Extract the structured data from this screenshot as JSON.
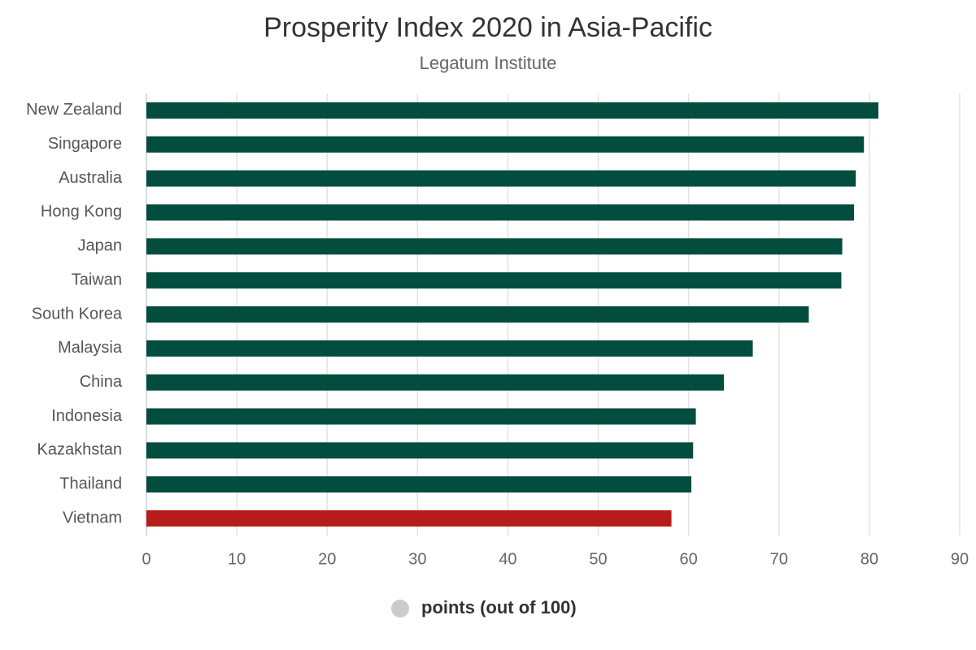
{
  "chart_data": {
    "type": "bar",
    "orientation": "horizontal",
    "title": "Prosperity Index 2020 in Asia-Pacific",
    "subtitle": "Legatum Institute",
    "categories": [
      "New Zealand",
      "Singapore",
      "Australia",
      "Hong Kong",
      "Japan",
      "Taiwan",
      "South Korea",
      "Malaysia",
      "China",
      "Indonesia",
      "Kazakhstan",
      "Thailand",
      "Vietnam"
    ],
    "series": [
      {
        "name": "points (out of 100)",
        "values": [
          81.0,
          79.4,
          78.5,
          78.3,
          77.0,
          76.9,
          73.3,
          67.1,
          63.9,
          60.8,
          60.5,
          60.3,
          58.1
        ],
        "colors": [
          "#034d3f",
          "#034d3f",
          "#034d3f",
          "#034d3f",
          "#034d3f",
          "#034d3f",
          "#034d3f",
          "#034d3f",
          "#034d3f",
          "#034d3f",
          "#034d3f",
          "#034d3f",
          "#b71c1c"
        ]
      }
    ],
    "xlim": [
      0,
      90
    ],
    "xticks": [
      0,
      10,
      20,
      30,
      40,
      50,
      60,
      70,
      80,
      90
    ],
    "grid": true,
    "legend": "bottom",
    "legend_marker_color": "#c8ccd2"
  }
}
